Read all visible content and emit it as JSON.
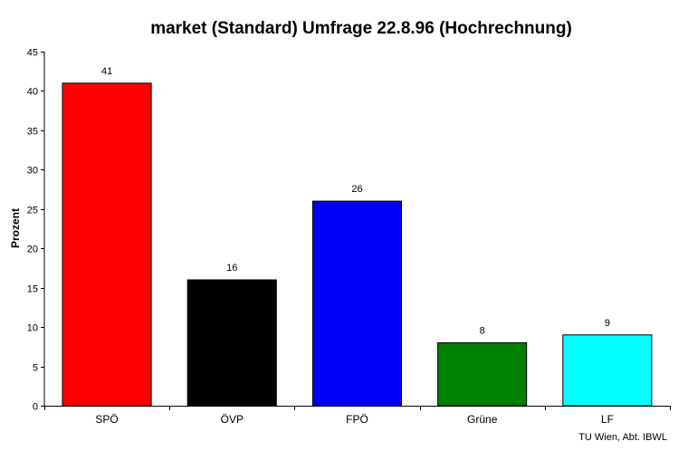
{
  "chart_data": {
    "type": "bar",
    "title": "market (Standard) Umfrage 22.8.96 (Hochrechnung)",
    "xlabel": "",
    "ylabel": "Prozent",
    "categories": [
      "SPÖ",
      "ÖVP",
      "FPÖ",
      "Grüne",
      "LF"
    ],
    "values": [
      41,
      16,
      26,
      8,
      9
    ],
    "colors": [
      "#ff0000",
      "#000000",
      "#0000ff",
      "#008000",
      "#00ffff"
    ],
    "ylim": [
      0,
      45
    ],
    "yticks": [
      0,
      5,
      10,
      15,
      20,
      25,
      30,
      35,
      40,
      45
    ],
    "grid": false,
    "legend": "none",
    "data_labels": true
  },
  "footer": {
    "credit": "TU Wien, Abt. IBWL"
  }
}
